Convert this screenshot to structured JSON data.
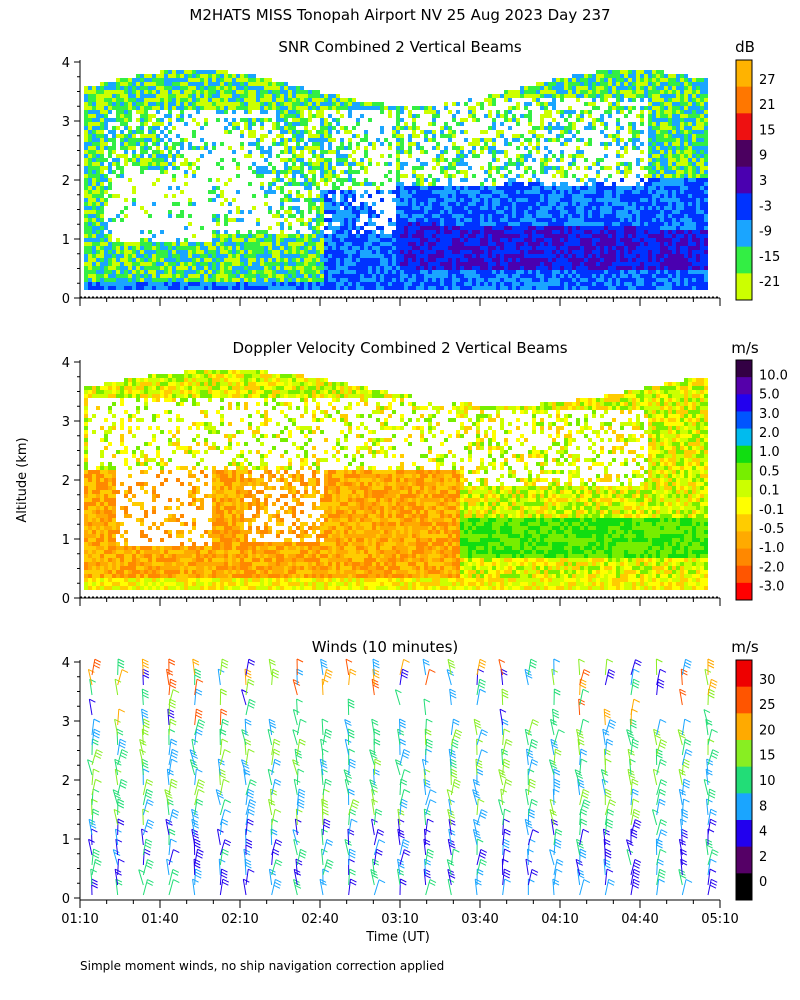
{
  "title": "M2HATS MISS Tonopah Airport NV  25 Aug 2023 Day 237",
  "ylabel": "Altitude (km)",
  "xlabel": "Time (UT)",
  "footnote": "Simple moment winds, no ship navigation correction applied",
  "colors": {
    "snr": [
      "#ccff00",
      "#33ee44",
      "#1aa5ff",
      "#0033ff",
      "#4a00b0",
      "#4b0060",
      "#ee1111",
      "#ff7700",
      "#ffb300"
    ],
    "vel": [
      "#ff0000",
      "#ff5500",
      "#ff8800",
      "#ffaa00",
      "#ffcc00",
      "#ffff00",
      "#ccff00",
      "#77ee00",
      "#11dd11",
      "#00bbee",
      "#0055ff",
      "#2200ee",
      "#5500aa",
      "#330044"
    ],
    "wind": [
      "#000000",
      "#550066",
      "#2200ee",
      "#1aa5ff",
      "#22dd77",
      "#88ee22",
      "#ffaa00",
      "#ff5500",
      "#ee0000"
    ]
  },
  "chart_data": [
    {
      "type": "heatmap",
      "title": "SNR Combined 2 Vertical Beams",
      "unit": "dB",
      "colorbar_ticks": [
        "27",
        "21",
        "15",
        "9",
        "3",
        "-3",
        "-9",
        "-15",
        "-21"
      ],
      "y_ticks": [
        "4",
        "3",
        "2",
        "1",
        "0"
      ],
      "x_ticks": [
        "01:10",
        "01:40",
        "02:10",
        "02:40",
        "03:10",
        "03:40",
        "04:10",
        "04:40",
        "05:10"
      ],
      "ylim": [
        0,
        4
      ],
      "xlim": [
        "01:10",
        "05:10"
      ]
    },
    {
      "type": "heatmap",
      "title": "Doppler Velocity Combined 2 Vertical Beams",
      "unit": "m/s",
      "colorbar_ticks": [
        "10.0",
        "5.0",
        "3.0",
        "2.0",
        "1.0",
        "0.5",
        "0.1",
        "-0.1",
        "-0.5",
        "-1.0",
        "-2.0",
        "-3.0"
      ],
      "y_ticks": [
        "4",
        "3",
        "2",
        "1",
        "0"
      ],
      "ylim": [
        0,
        4
      ],
      "xlim": [
        "01:10",
        "05:10"
      ]
    },
    {
      "type": "scatter",
      "title": "Winds (10 minutes)",
      "unit": "m/s",
      "colorbar_ticks": [
        "30",
        "25",
        "20",
        "15",
        "10",
        "8",
        "4",
        "2",
        "0"
      ],
      "y_ticks": [
        "4",
        "3",
        "2",
        "1",
        "0"
      ],
      "x_ticks": [
        "01:10",
        "01:40",
        "02:10",
        "02:40",
        "03:10",
        "03:40",
        "04:10",
        "04:40",
        "05:10"
      ],
      "ylim": [
        0,
        4
      ],
      "xlim": [
        "01:10",
        "05:10"
      ]
    }
  ]
}
